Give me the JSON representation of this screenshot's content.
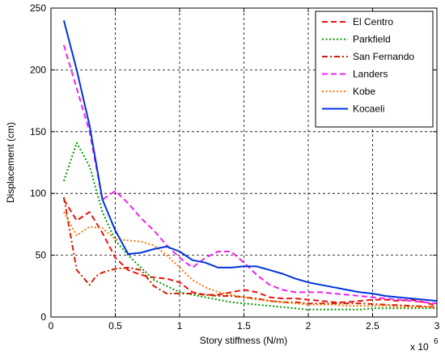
{
  "chart_data": {
    "type": "line",
    "title": "",
    "xlabel": "Story stiffness (N/m)",
    "ylabel": "Displacement (cm)",
    "x_exponent_label": "x 10",
    "x_exponent_power": "6",
    "xlim": [
      0,
      3
    ],
    "ylim": [
      0,
      250
    ],
    "xticks": [
      0,
      0.5,
      1,
      1.5,
      2,
      2.5,
      3
    ],
    "xtick_labels": [
      "0",
      "0.5",
      "1",
      "1.5",
      "2",
      "2.5",
      "3"
    ],
    "yticks": [
      0,
      50,
      100,
      150,
      200,
      250
    ],
    "ytick_labels": [
      "0",
      "50",
      "100",
      "150",
      "200",
      "250"
    ],
    "grid": true,
    "legend_position": "top-right",
    "series": [
      {
        "name": "El Centro",
        "color": "#ee1111",
        "dash": "dashed",
        "x": [
          0.1,
          0.2,
          0.3,
          0.4,
          0.5,
          0.6,
          0.7,
          0.8,
          0.9,
          1.0,
          1.1,
          1.2,
          1.3,
          1.4,
          1.5,
          1.6,
          1.7,
          1.8,
          1.9,
          2.0,
          2.1,
          2.2,
          2.3,
          2.4,
          2.5,
          2.6,
          2.7,
          2.8,
          2.9,
          3.0
        ],
        "values": [
          95,
          78,
          85,
          68,
          48,
          38,
          34,
          32,
          31,
          28,
          20,
          18,
          18,
          20,
          22,
          20,
          16,
          15,
          15,
          14,
          13,
          12,
          12,
          13,
          14,
          14,
          13,
          14,
          12,
          9
        ]
      },
      {
        "name": "Parkfield",
        "color": "#009900",
        "dash": "dotted",
        "x": [
          0.1,
          0.2,
          0.3,
          0.4,
          0.5,
          0.6,
          0.7,
          0.8,
          0.9,
          1.0,
          1.1,
          1.2,
          1.3,
          1.4,
          1.5,
          1.6,
          1.7,
          1.8,
          1.9,
          2.0,
          2.1,
          2.2,
          2.3,
          2.4,
          2.5,
          2.6,
          2.7,
          2.8,
          2.9,
          3.0
        ],
        "values": [
          110,
          141,
          122,
          85,
          62,
          50,
          40,
          30,
          25,
          20,
          18,
          16,
          14,
          12,
          11,
          10,
          9,
          8,
          7,
          6,
          6,
          6,
          6,
          6,
          7,
          7,
          7,
          7,
          7,
          7
        ]
      },
      {
        "name": "San Fernando",
        "color": "#cc2200",
        "dash": "dashdot",
        "x": [
          0.1,
          0.2,
          0.3,
          0.35,
          0.4,
          0.5,
          0.6,
          0.7,
          0.8,
          0.9,
          1.0,
          1.1,
          1.2,
          1.3,
          1.4,
          1.5,
          1.6,
          1.7,
          1.8,
          1.9,
          2.0,
          2.2,
          2.4,
          2.6,
          2.8,
          3.0
        ],
        "values": [
          97,
          38,
          26,
          33,
          36,
          39,
          40,
          38,
          25,
          19,
          19,
          19,
          18,
          17,
          17,
          16,
          15,
          13,
          12,
          12,
          11,
          11,
          11,
          10,
          9,
          8
        ]
      },
      {
        "name": "Landers",
        "color": "#ee22ee",
        "dash": "dashed",
        "x": [
          0.1,
          0.2,
          0.3,
          0.4,
          0.5,
          0.6,
          0.7,
          0.8,
          0.9,
          1.0,
          1.1,
          1.2,
          1.3,
          1.4,
          1.5,
          1.6,
          1.7,
          1.8,
          1.9,
          2.0,
          2.1,
          2.2,
          2.3,
          2.4,
          2.5,
          2.6,
          2.7,
          2.8,
          2.9,
          3.0
        ],
        "values": [
          220,
          185,
          150,
          95,
          102,
          92,
          80,
          70,
          58,
          48,
          40,
          48,
          53,
          53,
          44,
          34,
          26,
          22,
          20,
          20,
          20,
          19,
          18,
          17,
          16,
          15,
          14,
          13,
          12,
          11
        ]
      },
      {
        "name": "Kobe",
        "color": "#ff7700",
        "dash": "dotted",
        "x": [
          0.1,
          0.2,
          0.3,
          0.4,
          0.5,
          0.6,
          0.7,
          0.8,
          0.9,
          1.0,
          1.1,
          1.2,
          1.3,
          1.4,
          1.5,
          1.6,
          1.7,
          1.8,
          1.9,
          2.0,
          2.1,
          2.2,
          2.3,
          2.4,
          2.5,
          2.6,
          2.7,
          2.8,
          2.9,
          3.0
        ],
        "values": [
          85,
          66,
          73,
          72,
          63,
          62,
          61,
          58,
          50,
          40,
          30,
          24,
          20,
          18,
          16,
          14,
          13,
          12,
          11,
          10,
          10,
          10,
          9,
          9,
          9,
          9,
          8,
          8,
          8,
          8
        ]
      },
      {
        "name": "Kocaeli",
        "color": "#0033dd",
        "dash": "solid",
        "x": [
          0.1,
          0.2,
          0.3,
          0.4,
          0.5,
          0.6,
          0.7,
          0.8,
          0.9,
          1.0,
          1.1,
          1.2,
          1.3,
          1.4,
          1.5,
          1.6,
          1.7,
          1.8,
          1.9,
          2.0,
          2.1,
          2.2,
          2.3,
          2.4,
          2.5,
          2.6,
          2.7,
          2.8,
          2.9,
          3.0
        ],
        "values": [
          240,
          200,
          155,
          95,
          70,
          51,
          52,
          55,
          57,
          53,
          46,
          44,
          40,
          40,
          41,
          41,
          38,
          35,
          31,
          28,
          26,
          24,
          22,
          20,
          19,
          17,
          16,
          15,
          14,
          13
        ]
      }
    ]
  }
}
